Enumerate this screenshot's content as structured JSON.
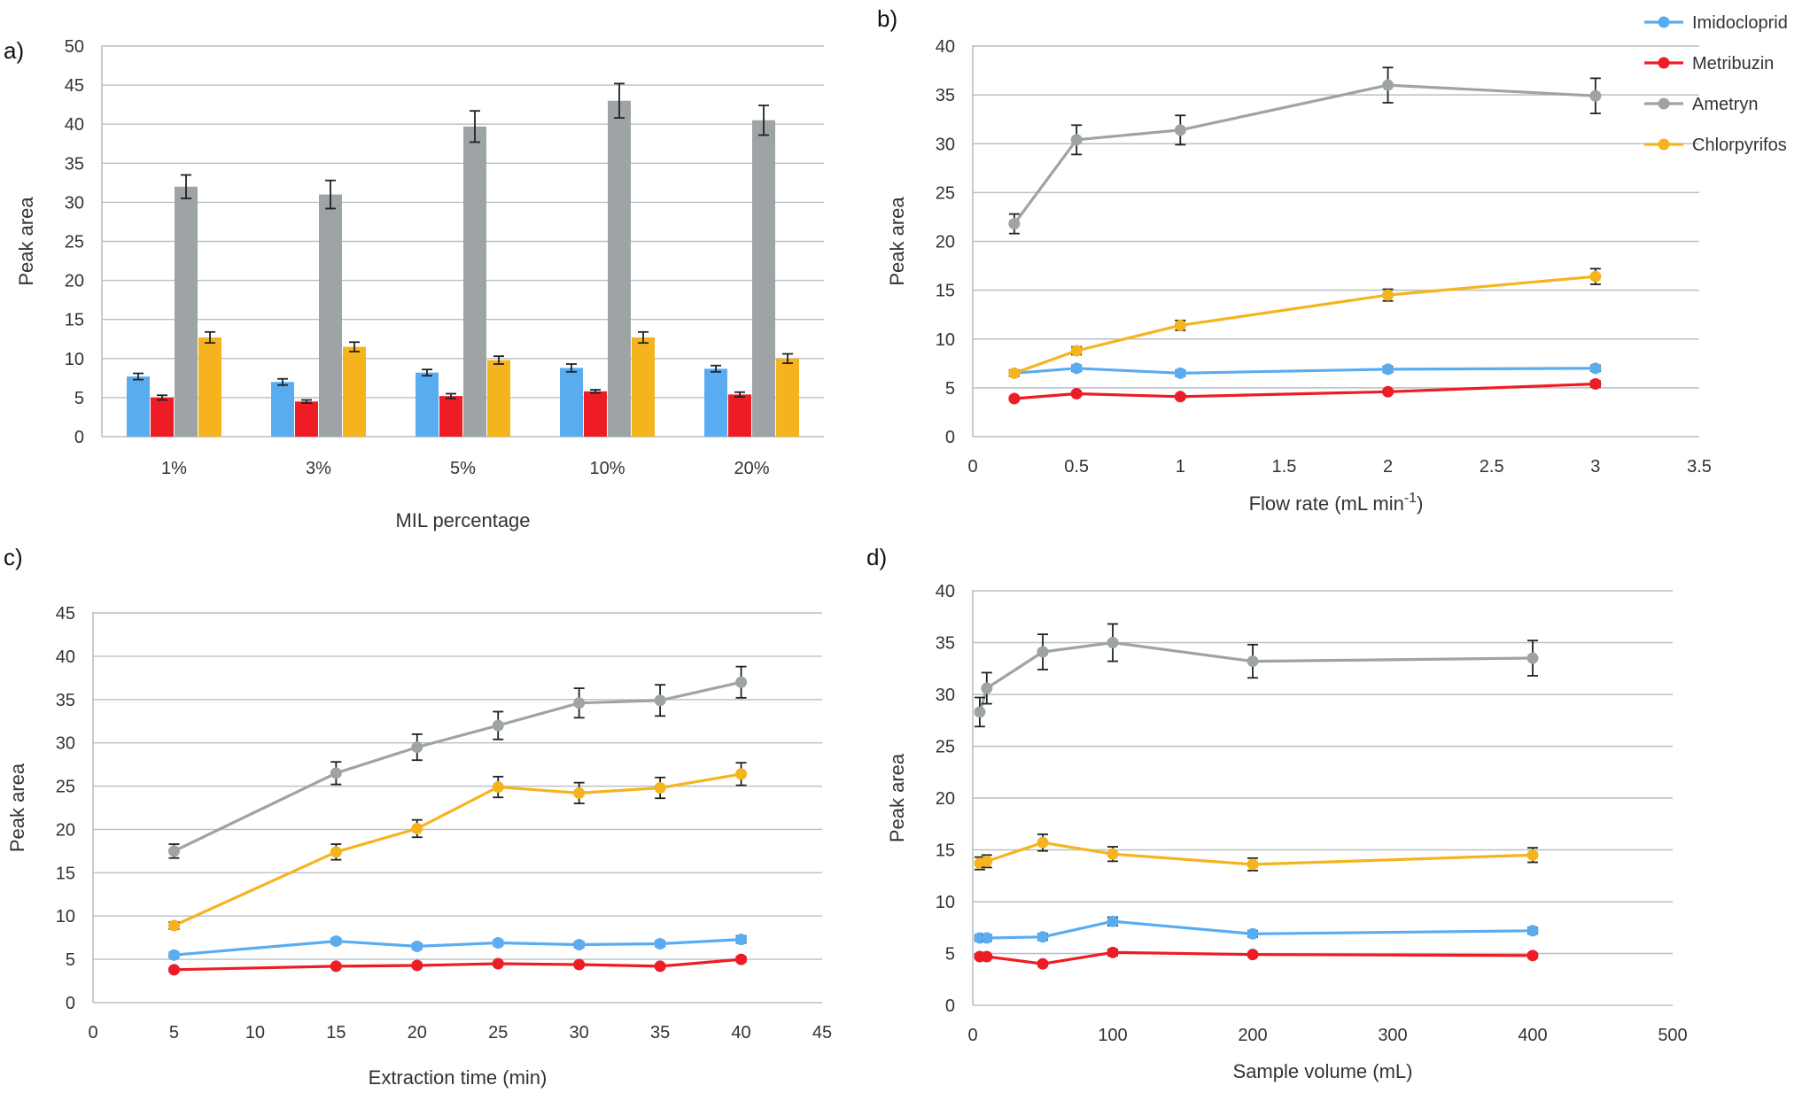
{
  "figure": {
    "colors": {
      "Imidocloprid": "#5aacf0",
      "Metribuzin": "#ee1c24",
      "Ametryn": "#9ea3a5",
      "Chlorpyrifos": "#f5b41e"
    },
    "legend": {
      "placement": "top-right",
      "entries": [
        "Imidocloprid",
        "Metribuzin",
        "Ametryn",
        "Chlorpyrifos"
      ]
    }
  },
  "chart_data": [
    {
      "panel": "a)",
      "type": "bar",
      "xlabel": "MIL percentage",
      "ylabel": "Peak area",
      "ylim": [
        0,
        50
      ],
      "yticks": [
        0,
        5,
        10,
        15,
        20,
        25,
        30,
        35,
        40,
        45,
        50
      ],
      "grid": true,
      "categories": [
        "1%",
        "3%",
        "5%",
        "10%",
        "20%"
      ],
      "series": [
        {
          "name": "Imidocloprid",
          "values": [
            7.7,
            7.0,
            8.2,
            8.8,
            8.7
          ],
          "errors": [
            0.4,
            0.4,
            0.4,
            0.5,
            0.4
          ]
        },
        {
          "name": "Metribuzin",
          "values": [
            5.0,
            4.5,
            5.2,
            5.8,
            5.4
          ],
          "errors": [
            0.3,
            0.2,
            0.3,
            0.2,
            0.3
          ]
        },
        {
          "name": "Ametryn",
          "values": [
            32.0,
            31.0,
            39.7,
            43.0,
            40.5
          ],
          "errors": [
            1.5,
            1.8,
            2.0,
            2.2,
            1.9
          ]
        },
        {
          "name": "Chlorpyrifos",
          "values": [
            12.7,
            11.5,
            9.8,
            12.7,
            10.0
          ],
          "errors": [
            0.7,
            0.6,
            0.5,
            0.7,
            0.6
          ]
        }
      ]
    },
    {
      "panel": "b)",
      "type": "line",
      "xlabel": "Flow rate (mL min",
      "xlabel_sup": "-1",
      "xlabel_end": ")",
      "ylabel": "Peak area",
      "xlim": [
        0,
        3.5
      ],
      "ylim": [
        0,
        40
      ],
      "xticks": [
        0,
        0.5,
        1,
        1.5,
        2,
        2.5,
        3,
        3.5
      ],
      "yticks": [
        0,
        5,
        10,
        15,
        20,
        25,
        30,
        35,
        40
      ],
      "grid": true,
      "x": [
        0.2,
        0.5,
        1,
        2,
        3
      ],
      "series": [
        {
          "name": "Imidocloprid",
          "values": [
            6.5,
            7.0,
            6.5,
            6.9,
            7.0
          ],
          "errors": [
            0.3,
            0.3,
            0.3,
            0.3,
            0.3
          ]
        },
        {
          "name": "Metribuzin",
          "values": [
            3.9,
            4.4,
            4.1,
            4.6,
            5.4
          ],
          "errors": [
            0.2,
            0.2,
            0.2,
            0.2,
            0.3
          ]
        },
        {
          "name": "Ametryn",
          "values": [
            21.8,
            30.4,
            31.4,
            36.0,
            34.9
          ],
          "errors": [
            1.0,
            1.5,
            1.5,
            1.8,
            1.8
          ]
        },
        {
          "name": "Chlorpyrifos",
          "values": [
            6.5,
            8.8,
            11.4,
            14.5,
            16.4
          ],
          "errors": [
            0.3,
            0.4,
            0.5,
            0.6,
            0.8
          ]
        }
      ]
    },
    {
      "panel": "c)",
      "type": "line",
      "xlabel": "Extraction time (min)",
      "ylabel": "Peak area",
      "xlim": [
        0,
        45
      ],
      "ylim": [
        0,
        45
      ],
      "xticks": [
        0,
        5,
        10,
        15,
        20,
        25,
        30,
        35,
        40,
        45
      ],
      "yticks": [
        0,
        5,
        10,
        15,
        20,
        25,
        30,
        35,
        40,
        45
      ],
      "grid": true,
      "x": [
        5,
        15,
        20,
        25,
        30,
        35,
        40
      ],
      "series": [
        {
          "name": "Imidocloprid",
          "values": [
            5.5,
            7.1,
            6.5,
            6.9,
            6.7,
            6.8,
            7.3
          ],
          "errors": [
            0.3,
            0.3,
            0.3,
            0.3,
            0.3,
            0.3,
            0.4
          ]
        },
        {
          "name": "Metribuzin",
          "values": [
            3.8,
            4.2,
            4.3,
            4.5,
            4.4,
            4.2,
            5.0
          ],
          "errors": [
            0.2,
            0.2,
            0.2,
            0.2,
            0.2,
            0.2,
            0.3
          ]
        },
        {
          "name": "Ametryn",
          "values": [
            17.5,
            26.5,
            29.5,
            32.0,
            34.6,
            34.9,
            37.0
          ],
          "errors": [
            0.8,
            1.3,
            1.5,
            1.6,
            1.7,
            1.8,
            1.8
          ]
        },
        {
          "name": "Chlorpyrifos",
          "values": [
            8.9,
            17.4,
            20.1,
            24.9,
            24.2,
            24.8,
            26.4
          ],
          "errors": [
            0.4,
            0.9,
            1.0,
            1.2,
            1.2,
            1.2,
            1.3
          ]
        }
      ]
    },
    {
      "panel": "d)",
      "type": "line",
      "xlabel": "Sample volume (mL)",
      "ylabel": "Peak area",
      "xlim": [
        0,
        500
      ],
      "ylim": [
        0,
        40
      ],
      "xticks": [
        0,
        100,
        200,
        300,
        400,
        500
      ],
      "yticks": [
        0,
        5,
        10,
        15,
        20,
        25,
        30,
        35,
        40
      ],
      "grid": true,
      "x": [
        5,
        10,
        50,
        100,
        200,
        400
      ],
      "series": [
        {
          "name": "Imidocloprid",
          "values": [
            6.5,
            6.5,
            6.6,
            8.1,
            6.9,
            7.2
          ],
          "errors": [
            0.3,
            0.3,
            0.3,
            0.4,
            0.3,
            0.3
          ]
        },
        {
          "name": "Metribuzin",
          "values": [
            4.7,
            4.7,
            4.0,
            5.1,
            4.9,
            4.8
          ],
          "errors": [
            0.2,
            0.2,
            0.2,
            0.3,
            0.2,
            0.2
          ]
        },
        {
          "name": "Ametryn",
          "values": [
            28.3,
            30.6,
            34.1,
            35.0,
            33.2,
            33.5
          ],
          "errors": [
            1.4,
            1.5,
            1.7,
            1.8,
            1.6,
            1.7
          ]
        },
        {
          "name": "Chlorpyrifos",
          "values": [
            13.7,
            13.9,
            15.7,
            14.6,
            13.6,
            14.5
          ],
          "errors": [
            0.6,
            0.6,
            0.8,
            0.7,
            0.6,
            0.7
          ]
        }
      ]
    }
  ]
}
